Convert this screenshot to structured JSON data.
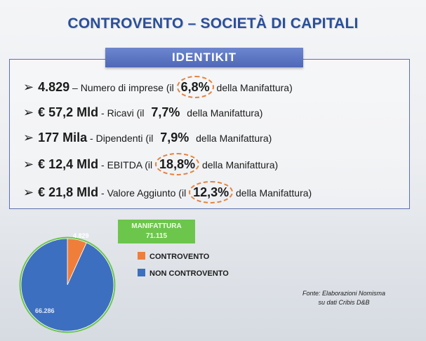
{
  "title": "CONTROVENTO – SOCIETÀ DI CAPITALI",
  "banner": "IDENTIKIT",
  "rows": [
    {
      "arrow": "➢",
      "value": "4.829",
      "desc": " – Numero di imprese ",
      "pre": "(il ",
      "pct": "6,8%",
      "post": " della Manifattura)",
      "circled": true
    },
    {
      "arrow": "➢",
      "value": "€ 57,2 Mld",
      "desc": " - Ricavi ",
      "pre": "(il ",
      "pct": "7,7%",
      "post": " della Manifattura)",
      "circled": false
    },
    {
      "arrow": "➢",
      "value": "177 Mila",
      "desc": " - Dipendenti ",
      "pre": "(il ",
      "pct": "7,9%",
      "post": " della Manifattura)",
      "circled": false
    },
    {
      "arrow": "➢",
      "value": "€ 12,4 Mld",
      "desc": " - EBITDA ",
      "pre": "(il ",
      "pct": "18,8%",
      "post": " della Manifattura)",
      "circled": true
    },
    {
      "arrow": "➢",
      "value": "€ 21,8 Mld",
      "desc": " - Valore Aggiunto ",
      "pre": "(il ",
      "pct": "12,3%",
      "post": " della Manifattura)",
      "circled": true
    }
  ],
  "manifattura": {
    "label": "MANIFATTURA",
    "value": "71.115"
  },
  "colors": {
    "controvento": "#ef7e3a",
    "non_controvento": "#3d6fc0",
    "pie_border": "#6cc64c",
    "highlight": "#e5823d"
  },
  "source": [
    "Fonte: Elaborazioni Nomisma",
    "su dati Cribis D&B"
  ],
  "chart_data": {
    "type": "pie",
    "slices": [
      {
        "name": "CONTROVENTO",
        "value": 4829,
        "label": "4.829"
      },
      {
        "name": "NON CONTROVENTO",
        "value": 66286,
        "label": "66.286"
      }
    ],
    "legend": [
      "CONTROVENTO",
      "NON CONTROVENTO"
    ],
    "legend_position": "right"
  }
}
